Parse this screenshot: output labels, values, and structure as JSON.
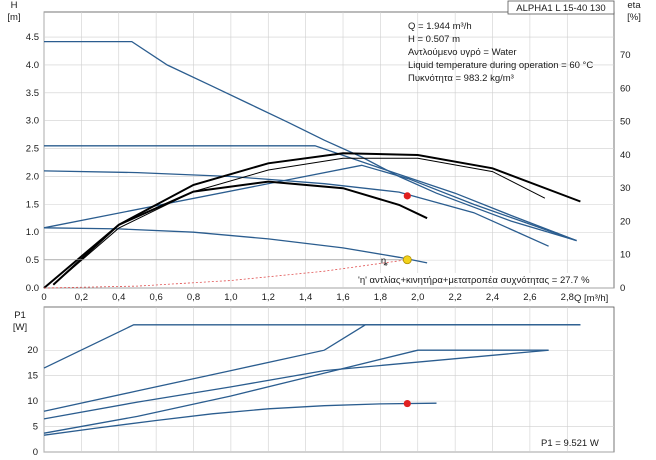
{
  "header": {
    "model": "ALPHA1 L 15-40 130"
  },
  "info": [
    "Q = 1.944 m³/h",
    "H = 0.507 m",
    "Αντλούμενο υγρό = Water",
    "Liquid temperature during operation = 60 °C",
    "Πυκνότητα = 983.2 kg/m³"
  ],
  "efficiency_note": "'η' αντλίας+κινητήρα+μετατροπέα συχνότητας = 27.7 %",
  "p1_note": "P1 = 9.521 W",
  "colors": {
    "pump_curve": "#2b5d8f",
    "eta_curve": "#000000",
    "system_curve": "#e05050",
    "duty_point": "#f2d21b",
    "p1_point": "#e02020"
  },
  "chart_data": [
    {
      "type": "line",
      "ylabel_line1": "H",
      "ylabel_line2": "[m]",
      "y2label_line1": "eta",
      "y2label_line2": "[%]",
      "xlabel": "Q [m³/h]",
      "xlim": [
        0,
        3.05
      ],
      "ylim": [
        0,
        4.95
      ],
      "y2lim": [
        0,
        83
      ],
      "x_ticks": [
        "0",
        "0,2",
        "0,4",
        "0,6",
        "0,8",
        "1,0",
        "1,2",
        "1,4",
        "1,6",
        "1,8",
        "2,0",
        "2,2",
        "2,4",
        "2,6",
        "2,8"
      ],
      "y_ticks": [
        "0.0",
        "0.5",
        "1.0",
        "1.5",
        "2.0",
        "2.5",
        "3.0",
        "3.5",
        "4.0",
        "4.5"
      ],
      "y2_ticks": [
        "0",
        "10",
        "20",
        "30",
        "40",
        "50",
        "60",
        "70"
      ],
      "grid": true,
      "head_series": [
        {
          "x": [
            0,
            0.47,
            0.66,
            0.9,
            1.1,
            1.3,
            1.5,
            1.7,
            1.9,
            2.1,
            2.3,
            2.5,
            2.85
          ],
          "y": [
            4.42,
            4.42,
            4.0,
            3.62,
            3.3,
            2.98,
            2.65,
            2.35,
            2.0,
            1.7,
            1.45,
            1.2,
            0.85
          ]
        },
        {
          "x": [
            0,
            1.45,
            1.8,
            2.2,
            2.5,
            2.85
          ],
          "y": [
            2.55,
            2.55,
            2.15,
            1.7,
            1.3,
            0.85
          ]
        },
        {
          "x": [
            0,
            0.5,
            1.0,
            1.5,
            1.9,
            2.3,
            2.7
          ],
          "y": [
            2.1,
            2.07,
            2.0,
            1.87,
            1.72,
            1.35,
            0.75
          ]
        },
        {
          "x": [
            0,
            0.4,
            0.8,
            1.2,
            1.6,
            1.9,
            2.05
          ],
          "y": [
            1.08,
            1.06,
            1.0,
            0.88,
            0.72,
            0.55,
            0.45
          ]
        },
        {
          "x": [
            0,
            1.7,
            1.95,
            2.3,
            2.85
          ],
          "y": [
            1.08,
            2.2,
            1.96,
            1.5,
            0.85
          ]
        }
      ],
      "eta_series": [
        {
          "x": [
            0.05,
            0.4,
            0.8,
            1.2,
            1.6,
            2.0,
            2.4,
            2.87
          ],
          "y": [
            1,
            19,
            31,
            37.5,
            40.5,
            40,
            36,
            26
          ]
        },
        {
          "x": [
            0.05,
            0.4,
            0.8,
            1.2,
            1.6,
            2.0,
            2.4,
            2.68
          ],
          "y": [
            1,
            18,
            29,
            35.5,
            39,
            39,
            35,
            27
          ]
        },
        {
          "x": [
            0,
            0.4,
            0.8,
            1.2,
            1.6,
            1.9,
            2.05
          ],
          "y": [
            0,
            19,
            29,
            32,
            30,
            25,
            21
          ]
        }
      ],
      "system_curve": {
        "x": [
          0,
          0.5,
          1.0,
          1.5,
          1.944
        ],
        "y": [
          0,
          0.034,
          0.134,
          0.302,
          0.507
        ]
      },
      "duty_point": {
        "x": 1.944,
        "y": 0.507
      },
      "eta_point": {
        "x": 1.944,
        "y": 27.7
      }
    },
    {
      "type": "line",
      "ylabel_line1": "P1",
      "ylabel_line2": "[W]",
      "xlim": [
        0,
        3.05
      ],
      "ylim": [
        0,
        28.5
      ],
      "y_ticks": [
        "0",
        "5",
        "10",
        "15",
        "20"
      ],
      "grid": true,
      "power_series": [
        {
          "x": [
            0,
            0.48,
            2.87
          ],
          "y": [
            16.5,
            25.0,
            25.0
          ]
        },
        {
          "x": [
            0,
            0.5,
            1.0,
            1.5,
            1.72,
            2.87
          ],
          "y": [
            8.0,
            12.0,
            16.0,
            20.0,
            25.0,
            25.0
          ]
        },
        {
          "x": [
            0,
            0.5,
            1.0,
            1.5,
            2.7
          ],
          "y": [
            6.5,
            9.8,
            12.8,
            16.0,
            20.0
          ]
        },
        {
          "x": [
            0,
            0.5,
            1.0,
            1.5,
            2.0,
            2.7
          ],
          "y": [
            3.7,
            7.0,
            11.0,
            15.5,
            20.0,
            20.0
          ]
        },
        {
          "x": [
            0,
            0.3,
            0.6,
            0.9,
            1.2,
            1.5,
            1.8,
            2.1
          ],
          "y": [
            3.3,
            4.8,
            6.2,
            7.5,
            8.5,
            9.1,
            9.45,
            9.6
          ]
        }
      ],
      "point": {
        "x": 1.944,
        "y": 9.521
      }
    }
  ]
}
